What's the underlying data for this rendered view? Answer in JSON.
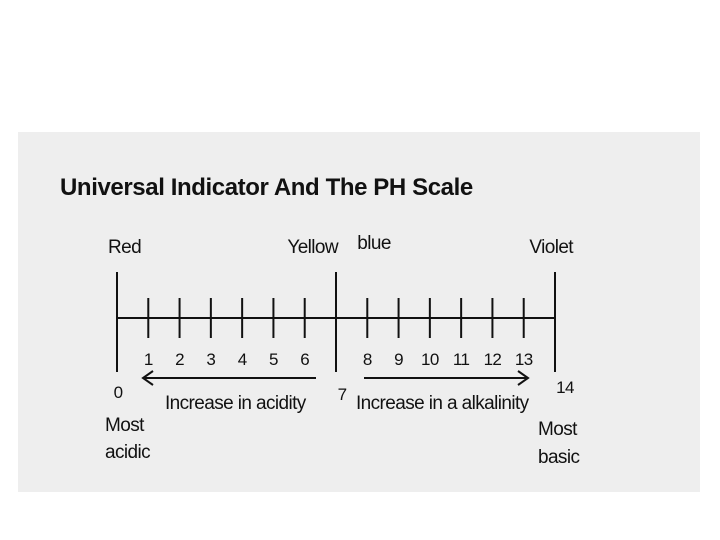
{
  "title": "Universal Indicator And The PH Scale",
  "colors": [
    {
      "label": "Red",
      "at": 0
    },
    {
      "label": "Yellow",
      "at": 6
    },
    {
      "label": "blue",
      "at": 8
    },
    {
      "label": "Violet",
      "at": 14
    }
  ],
  "scale": [
    0,
    1,
    2,
    3,
    4,
    5,
    6,
    7,
    8,
    9,
    10,
    11,
    12,
    13,
    14
  ],
  "arrows": {
    "left": "Increase in acidity",
    "right": "Increase in a alkalinity"
  },
  "ends": {
    "left": [
      "Most",
      "acidic"
    ],
    "right": [
      "Most",
      "basic"
    ]
  }
}
